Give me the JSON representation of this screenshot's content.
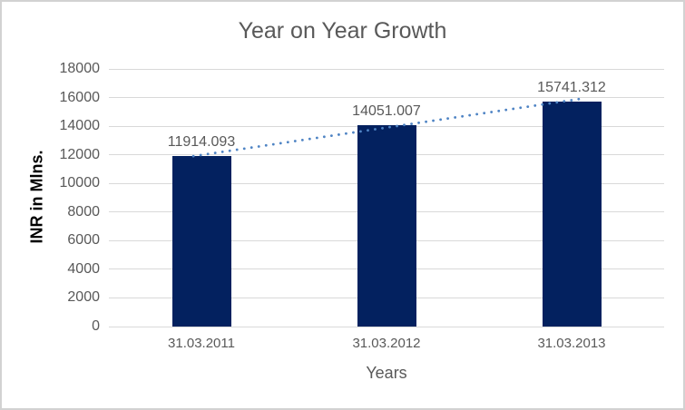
{
  "chart_data": {
    "type": "bar",
    "title": "Year on Year Growth",
    "categories": [
      "31.03.2011",
      "31.03.2012",
      "31.03.2013"
    ],
    "values": [
      11914.093,
      14051.007,
      15741.312
    ],
    "data_labels": [
      "11914.093",
      "14051.007",
      "15741.312"
    ],
    "xlabel": "Years",
    "ylabel": "INR in Mlns.",
    "ylim": [
      0,
      18000
    ],
    "yticks": [
      0,
      2000,
      4000,
      6000,
      8000,
      10000,
      12000,
      14000,
      16000,
      18000
    ],
    "grid": true,
    "legend": "none",
    "trendline": {
      "type": "linear",
      "style": "dotted-round"
    },
    "colors": {
      "bar": "#03215f",
      "trendline": "#4f84c4",
      "gridline": "#d9d9d9",
      "text": "#595959",
      "y_axis_title_text": "#000000",
      "background": "#ffffff",
      "border": "#d2d2d2"
    }
  }
}
